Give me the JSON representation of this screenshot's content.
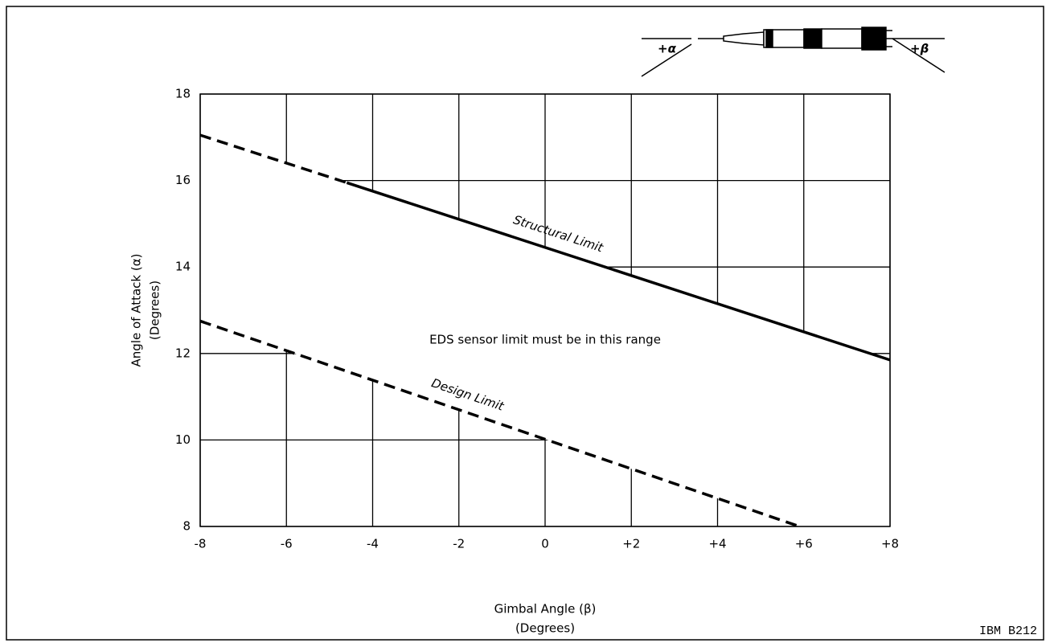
{
  "chart_data": {
    "type": "line",
    "x_label": "Gimbal Angle (β)",
    "x_label_unit": "(Degrees)",
    "y_label": "Angle of Attack (α)",
    "y_label_unit": "(Degrees)",
    "xlim": [
      -8,
      8
    ],
    "xticks": [
      -8,
      -6,
      -4,
      -2,
      0,
      {
        "value": 2,
        "label": "+2"
      },
      {
        "value": 4,
        "label": "+4"
      },
      {
        "value": 6,
        "label": "+6"
      },
      {
        "value": 8,
        "label": "+8"
      }
    ],
    "ylim": [
      8,
      18
    ],
    "yticks": [
      8,
      10,
      12,
      14,
      16,
      18
    ],
    "grid": true,
    "series": [
      {
        "name": "Structural Limit",
        "color": "#000000",
        "x": [
          -8,
          -4.6,
          8
        ],
        "values": [
          17.05,
          15.95,
          11.85
        ],
        "styles": [
          "dashed",
          "solid"
        ]
      },
      {
        "name": "Design Limit",
        "color": "#000000",
        "x": [
          -8,
          5.9
        ],
        "values": [
          12.75,
          8.0
        ],
        "styles": [
          "dashed"
        ]
      }
    ],
    "annotation": "EDS sensor limit must be in this range",
    "diagram_labels": [
      "+α",
      "+β"
    ],
    "footnote": "IBM B212"
  }
}
